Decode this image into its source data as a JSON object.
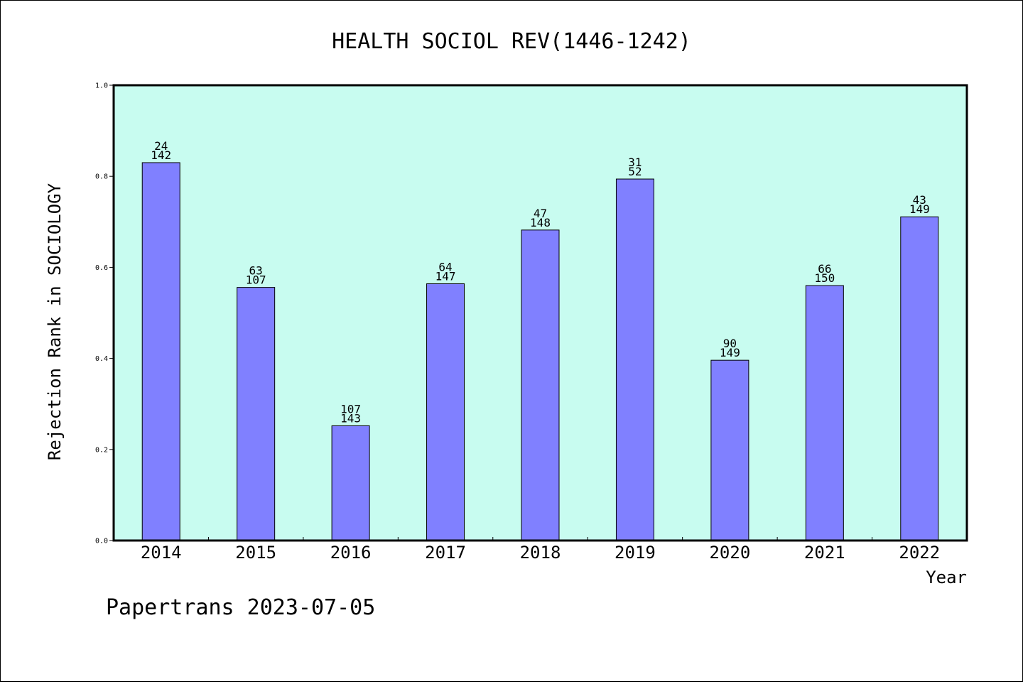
{
  "chart_data": {
    "type": "bar",
    "title": "HEALTH SOCIOL REV(1446-1242)",
    "xlabel": "Year",
    "ylabel": "Rejection Rank in SOCIOLOGY",
    "ylim": [
      0,
      1.0
    ],
    "yticks": [
      "0.0",
      "0.2",
      "0.4",
      "0.6",
      "0.8",
      "1.0"
    ],
    "categories": [
      "2014",
      "2015",
      "2016",
      "2017",
      "2018",
      "2019",
      "2020",
      "2021",
      "2022"
    ],
    "values": [
      0.83,
      0.556,
      0.252,
      0.564,
      0.682,
      0.794,
      0.396,
      0.56,
      0.711
    ],
    "labels_top": [
      "24",
      "63",
      "107",
      "64",
      "47",
      "31",
      "90",
      "66",
      "43"
    ],
    "labels_bottom": [
      "142",
      "107",
      "143",
      "147",
      "148",
      "52",
      "149",
      "150",
      "149"
    ],
    "grid": false,
    "colors": {
      "plot_bg": "#c8fcf0",
      "bar": "#8080ff",
      "bar_edge": "#000000"
    }
  },
  "footer": "Papertrans 2023-07-05"
}
